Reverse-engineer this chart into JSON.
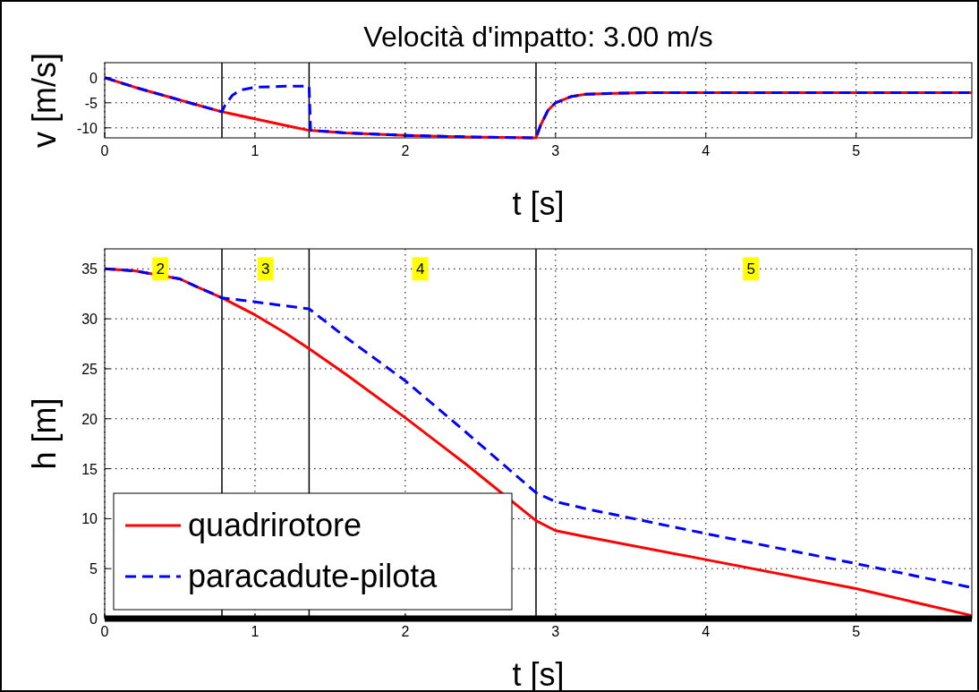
{
  "chart_data": [
    {
      "type": "line",
      "title": "Velocità d'impatto: 3.00 m/s",
      "xlabel": "t  [s]",
      "ylabel": "v  [m/s]",
      "xlim": [
        0,
        5.77
      ],
      "xticks": [
        0,
        1,
        2,
        3,
        4,
        5
      ],
      "ylim": [
        -12,
        3
      ],
      "yticks": [
        -10,
        -5,
        0
      ],
      "grid": true,
      "legend": false,
      "ref_lines": [
        {
          "axis": "x",
          "value": 0.78,
          "color": "#000000"
        },
        {
          "axis": "x",
          "value": 1.36,
          "color": "#000000"
        },
        {
          "axis": "x",
          "value": 2.87,
          "color": "#000000"
        }
      ],
      "series": [
        {
          "color": "#ff0000",
          "line_style": "solid",
          "x": [
            0,
            0.2,
            0.4,
            0.6,
            0.78,
            1.0,
            1.2,
            1.36,
            1.6,
            2.0,
            2.4,
            2.87,
            2.9,
            2.95,
            3.0,
            3.1,
            3.2,
            3.4,
            3.6,
            5.77
          ],
          "values": [
            0,
            -1.9,
            -3.6,
            -5.3,
            -6.8,
            -8.2,
            -9.5,
            -10.5,
            -11.0,
            -11.5,
            -11.8,
            -12,
            -9.5,
            -6.5,
            -5,
            -3.8,
            -3.3,
            -3.1,
            -3.0,
            -3.0
          ]
        },
        {
          "color": "#0000ff",
          "line_style": "dashed",
          "x": [
            0,
            0.2,
            0.4,
            0.6,
            0.78,
            0.8,
            0.85,
            0.9,
            1.0,
            1.2,
            1.36,
            1.37,
            1.6,
            2.0,
            2.4,
            2.87,
            2.9,
            2.95,
            3.0,
            3.1,
            3.2,
            3.4,
            3.6,
            5.77
          ],
          "values": [
            0,
            -1.9,
            -3.6,
            -5.3,
            -6.8,
            -5.5,
            -3.5,
            -2.5,
            -1.9,
            -1.7,
            -1.7,
            -10.5,
            -11.0,
            -11.5,
            -11.8,
            -12,
            -9.5,
            -6.5,
            -5,
            -3.8,
            -3.3,
            -3.1,
            -3.0,
            -3.0
          ]
        }
      ]
    },
    {
      "type": "line",
      "xlabel": "t  [s]",
      "ylabel": "h  [m]",
      "xlim": [
        0,
        5.77
      ],
      "xticks": [
        0,
        1,
        2,
        3,
        4,
        5
      ],
      "ylim": [
        0,
        37
      ],
      "yticks": [
        0,
        5,
        10,
        15,
        20,
        25,
        30,
        35
      ],
      "grid": true,
      "legend": "bottom left",
      "ref_lines": [
        {
          "axis": "x",
          "value": 0.78,
          "color": "#000000"
        },
        {
          "axis": "x",
          "value": 1.36,
          "color": "#000000"
        },
        {
          "axis": "x",
          "value": 2.87,
          "color": "#000000"
        }
      ],
      "annotations": [
        {
          "text": "2",
          "x": 0.37,
          "y": 35
        },
        {
          "text": "3",
          "x": 1.07,
          "y": 35
        },
        {
          "text": "4",
          "x": 2.1,
          "y": 35
        },
        {
          "text": "5",
          "x": 4.3,
          "y": 35
        }
      ],
      "series": [
        {
          "name": "quadrirotore",
          "color": "#ff0000",
          "line_style": "solid",
          "x": [
            0,
            0.2,
            0.5,
            0.6,
            0.78,
            1.0,
            1.2,
            1.36,
            1.6,
            2.0,
            2.4,
            2.87,
            3.0,
            3.2,
            4.0,
            5.0,
            5.77
          ],
          "values": [
            35,
            34.8,
            34.0,
            33.3,
            32.1,
            30.4,
            28.6,
            27.0,
            24.5,
            20.1,
            15.5,
            9.8,
            8.8,
            8.2,
            5.9,
            3.0,
            0.3
          ]
        },
        {
          "name": "paracadute-pilota",
          "color": "#0000ff",
          "line_style": "dashed",
          "x": [
            0,
            0.2,
            0.5,
            0.6,
            0.78,
            1.0,
            1.2,
            1.36,
            1.6,
            2.0,
            2.4,
            2.87,
            3.0,
            3.2,
            4.0,
            5.0,
            5.77
          ],
          "values": [
            35,
            34.8,
            34.0,
            33.3,
            32.1,
            31.7,
            31.3,
            31.0,
            28.2,
            23.8,
            18.7,
            12.6,
            11.7,
            11.0,
            8.5,
            5.5,
            3.1
          ]
        }
      ]
    }
  ]
}
